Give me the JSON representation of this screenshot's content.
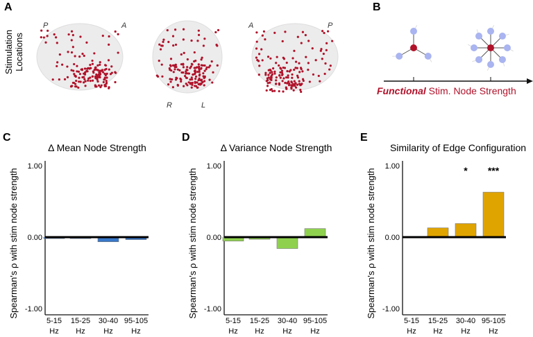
{
  "panel_a": {
    "letter": "A",
    "ylabel": "Stimulation Locations",
    "orient": [
      "P",
      "A",
      "R",
      "L",
      "A",
      "P"
    ]
  },
  "panel_b": {
    "letter": "B",
    "axis_label_emph": "Functional",
    "axis_label_rest": " Stim. Node Strength"
  },
  "colors": {
    "mean": "#3a78c9",
    "variance": "#8fd14f",
    "edge": "#e0a400",
    "stim": "#b0122a",
    "node": "#a9b4f0"
  },
  "chart_data": [
    {
      "type": "bar",
      "letter": "C",
      "title": "Δ Mean Node Strength",
      "ylabel": "Spearman's ρ  with stim node strength",
      "ylim": [
        -1,
        1
      ],
      "yticks": [
        "1.00",
        "0.00",
        "-1.00"
      ],
      "categories": [
        [
          "5-15",
          "Hz"
        ],
        [
          "15-25",
          "Hz"
        ],
        [
          "30-40",
          "Hz"
        ],
        [
          "95-105",
          "Hz"
        ]
      ],
      "values": [
        -0.02,
        -0.02,
        -0.065,
        -0.035
      ],
      "annotations": [
        "",
        "",
        "",
        ""
      ],
      "color_key": "mean"
    },
    {
      "type": "bar",
      "letter": "D",
      "title": "Δ Variance Node Strength",
      "ylabel": "Spearman's ρ  with stim node strength",
      "ylim": [
        -1,
        1
      ],
      "yticks": [
        "1.00",
        "0.00",
        "-1.00"
      ],
      "categories": [
        [
          "5-15",
          "Hz"
        ],
        [
          "15-25",
          "Hz"
        ],
        [
          "30-40",
          "Hz"
        ],
        [
          "95-105",
          "Hz"
        ]
      ],
      "values": [
        -0.055,
        -0.03,
        -0.16,
        0.12
      ],
      "annotations": [
        "",
        "",
        "",
        ""
      ],
      "color_key": "variance"
    },
    {
      "type": "bar",
      "letter": "E",
      "title": "Similarity of Edge Configuration",
      "ylabel": "Spearman's ρ  with stim node strength",
      "ylim": [
        -1,
        1
      ],
      "yticks": [
        "1.00",
        "0.00",
        "-1.00"
      ],
      "categories": [
        [
          "5-15",
          "Hz"
        ],
        [
          "15-25",
          "Hz"
        ],
        [
          "30-40",
          "Hz"
        ],
        [
          "95-105",
          "Hz"
        ]
      ],
      "values": [
        0,
        0.13,
        0.19,
        0.63
      ],
      "annotations": [
        "",
        "",
        "*",
        "***"
      ],
      "color_key": "edge"
    }
  ]
}
